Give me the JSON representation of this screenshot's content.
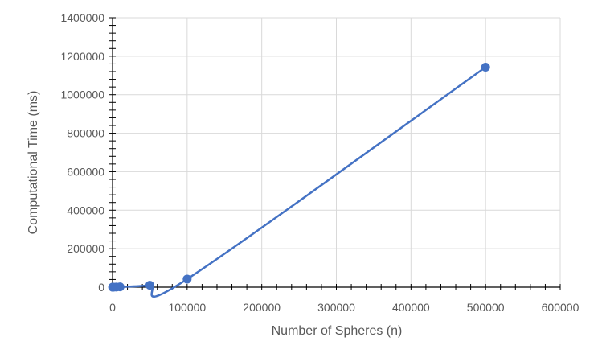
{
  "chart_data": {
    "type": "scatter",
    "title": "",
    "xlabel": "Number of Spheres (n)",
    "ylabel": "Computational Time (ms)",
    "xlim": [
      0,
      600000
    ],
    "ylim": [
      0,
      1400000
    ],
    "x_ticks": [
      "0",
      "100000",
      "200000",
      "300000",
      "400000",
      "500000",
      "600000"
    ],
    "y_ticks": [
      "0",
      "200000",
      "400000",
      "600000",
      "800000",
      "1000000",
      "1200000",
      "1400000"
    ],
    "grid": true,
    "legend": "none",
    "smooth_line": true,
    "series": [
      {
        "color": "#4472C4",
        "points": [
          {
            "x": 100,
            "y": 30
          },
          {
            "x": 500,
            "y": 100
          },
          {
            "x": 1000,
            "y": 200
          },
          {
            "x": 5000,
            "y": 600
          },
          {
            "x": 10000,
            "y": 1500
          },
          {
            "x": 50000,
            "y": 10000
          },
          {
            "x": 100000,
            "y": 42000
          },
          {
            "x": 500000,
            "y": 1143000
          }
        ]
      }
    ]
  }
}
